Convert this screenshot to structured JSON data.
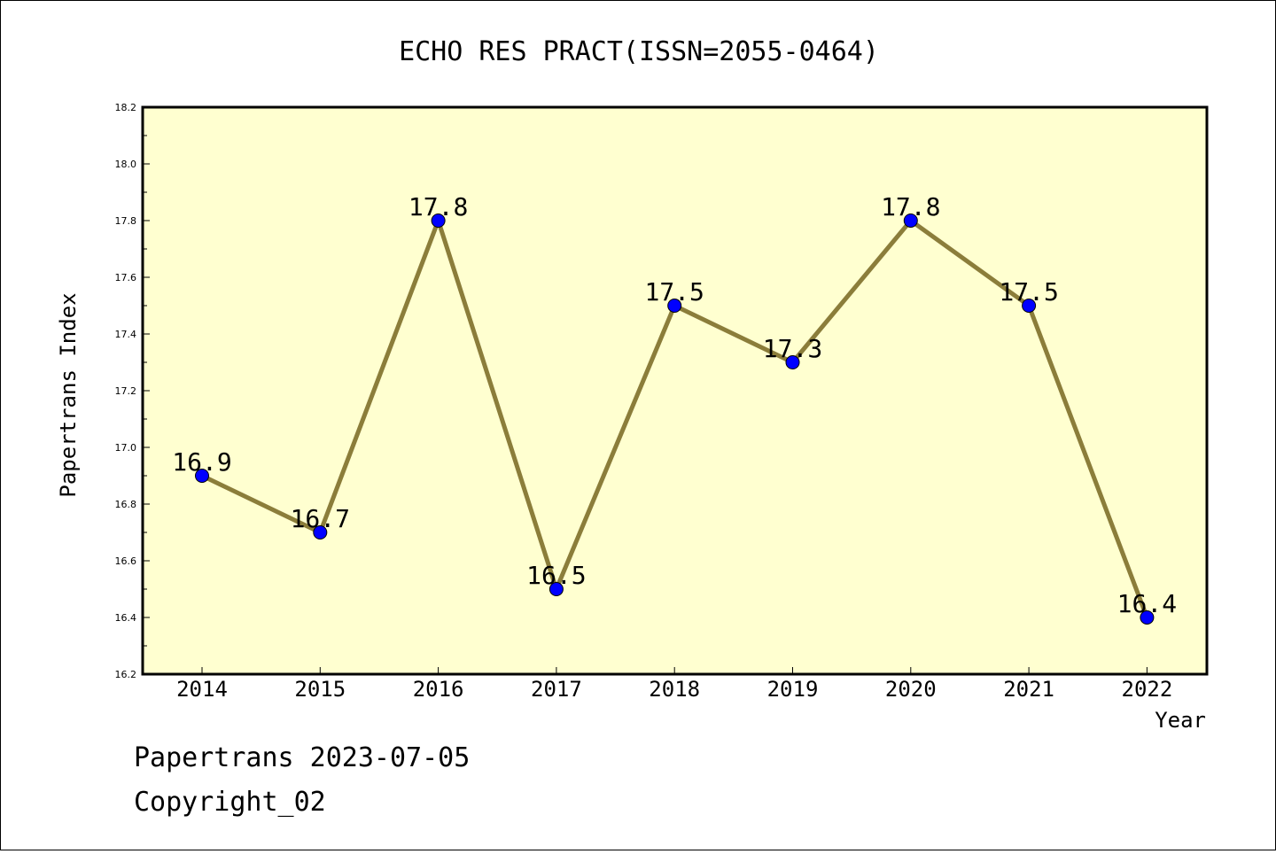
{
  "chart_data": {
    "type": "line",
    "title": "ECHO RES PRACT(ISSN=2055-0464)",
    "xlabel": "Year",
    "ylabel": "Papertrans Index",
    "categories": [
      "2014",
      "2015",
      "2016",
      "2017",
      "2018",
      "2019",
      "2020",
      "2021",
      "2022"
    ],
    "values": [
      16.9,
      16.7,
      17.8,
      16.5,
      17.5,
      17.3,
      17.8,
      17.5,
      16.4
    ],
    "data_labels": [
      "16.9",
      "16.7",
      "17.8",
      "16.5",
      "17.5",
      "17.3",
      "17.8",
      "17.5",
      "16.4"
    ],
    "ylim": [
      16.2,
      18.2
    ],
    "yticks": [
      "16.2",
      "16.4",
      "16.6",
      "16.8",
      "17.0",
      "17.2",
      "17.4",
      "17.6",
      "17.8",
      "18.0",
      "18.2"
    ],
    "grid": false,
    "colors": {
      "plot_background": "#ffffd0",
      "line": "#8b7d3a",
      "marker": "#0000ff"
    }
  },
  "footer": {
    "line1": "Papertrans 2023-07-05",
    "line2": "Copyright_02"
  }
}
